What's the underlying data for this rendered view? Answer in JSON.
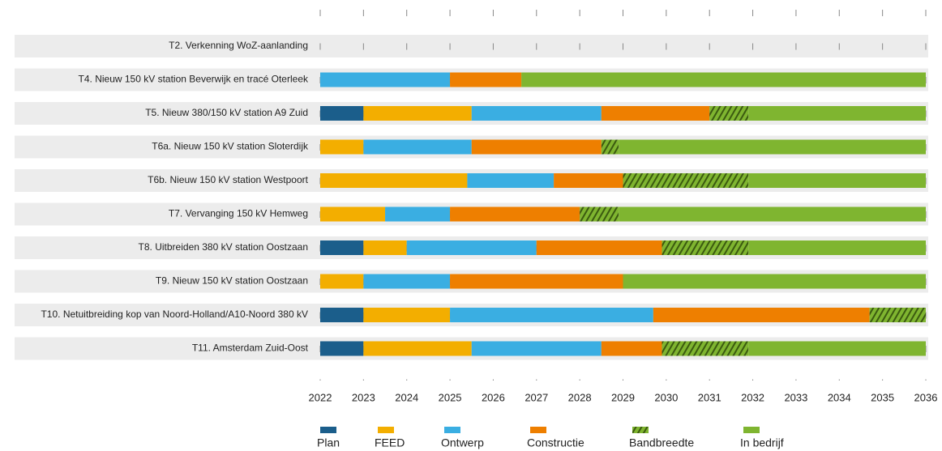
{
  "chart_data": {
    "type": "gantt",
    "categories": [
      "T2. Verkenning WoZ-aanlanding",
      "T4. Nieuw 150 kV station Beverwijk en tracé Oterleek",
      "T5. Nieuw 380/150 kV station A9 Zuid",
      "T6a. Nieuw 150 kV station Sloterdijk",
      "T6b. Nieuw 150 kV station Westpoort",
      "T7. Vervanging 150 kV Hemweg",
      "T8. Uitbreiden 380 kV station Oostzaan",
      "T9. Nieuw 150 kV station Oostzaan",
      "T10. Netuitbreiding kop van Noord-Holland/A10-Noord 380 kV",
      "T11. Amsterdam Zuid-Oost"
    ],
    "series": [
      {
        "name": "Plan",
        "color": "#1b5e8b",
        "values": [
          null,
          null,
          [
            2022,
            2023
          ],
          null,
          null,
          null,
          [
            2022,
            2023
          ],
          null,
          [
            2022,
            2023
          ],
          [
            2022,
            2023
          ]
        ]
      },
      {
        "name": "FEED",
        "color": "#f3ae00",
        "values": [
          null,
          null,
          [
            2023,
            2025.5
          ],
          [
            2022,
            2023
          ],
          [
            2022,
            2025.4
          ],
          [
            2022,
            2023.5
          ],
          [
            2023,
            2024
          ],
          [
            2022,
            2023
          ],
          [
            2023,
            2025
          ],
          [
            2023,
            2025.5
          ]
        ]
      },
      {
        "name": "Ontwerp",
        "color": "#3aaee2",
        "values": [
          null,
          [
            2022,
            2025
          ],
          [
            2025.5,
            2028.5
          ],
          [
            2023,
            2025.5
          ],
          [
            2025.4,
            2027.4
          ],
          [
            2023.5,
            2025
          ],
          [
            2024,
            2027
          ],
          [
            2023,
            2025
          ],
          [
            2025,
            2029.7
          ],
          [
            2025.5,
            2028.5
          ]
        ]
      },
      {
        "name": "Constructie",
        "color": "#ee7f00",
        "values": [
          null,
          [
            2025,
            2026.65
          ],
          [
            2028.5,
            2031
          ],
          [
            2025.5,
            2028.5
          ],
          [
            2027.4,
            2029
          ],
          [
            2025,
            2028
          ],
          [
            2027,
            2029.9
          ],
          [
            2025,
            2029
          ],
          [
            2029.7,
            2034.7
          ],
          [
            2028.5,
            2029.9
          ]
        ]
      },
      {
        "name": "Bandbreedte",
        "color": "#7fb530",
        "pattern": "hatch",
        "values": [
          null,
          null,
          [
            2031,
            2031.9
          ],
          [
            2028.5,
            2028.9
          ],
          [
            2029,
            2031.9
          ],
          [
            2028,
            2028.9
          ],
          [
            2029.9,
            2031.9
          ],
          null,
          [
            2034.7,
            2036
          ],
          [
            2029.9,
            2031.9
          ]
        ]
      },
      {
        "name": "In bedrijf",
        "color": "#7fb530",
        "values": [
          null,
          [
            2026.65,
            2036
          ],
          [
            2031.9,
            2036
          ],
          [
            2028.9,
            2036
          ],
          [
            2031.9,
            2036
          ],
          [
            2028.9,
            2036
          ],
          [
            2031.9,
            2036
          ],
          [
            2029,
            2036
          ],
          null,
          [
            2031.9,
            2036
          ]
        ]
      }
    ],
    "xlim": [
      2022,
      2036
    ],
    "xticks": [
      2022,
      2023,
      2024,
      2025,
      2026,
      2027,
      2028,
      2029,
      2030,
      2031,
      2032,
      2033,
      2034,
      2035,
      2036
    ]
  }
}
